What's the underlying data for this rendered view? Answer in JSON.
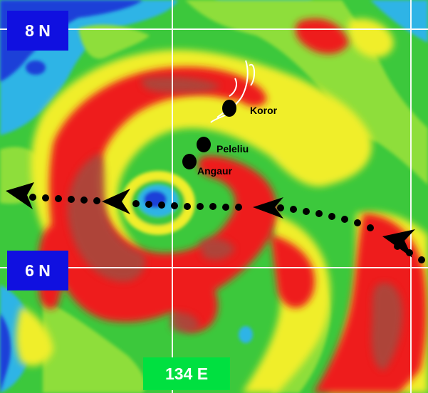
{
  "labels": {
    "lat_8n": "8 N",
    "lat_6n": "6 N",
    "lon_134e": "134 E"
  },
  "islands": [
    {
      "name": "Koror"
    },
    {
      "name": "Peleliu"
    },
    {
      "name": "Angaur"
    }
  ],
  "colors": {
    "ocean_green": "#3cc83c",
    "light_green": "#8ede3a",
    "yellow": "#f0ee2a",
    "red": "#ee1c1c",
    "dark_red": "#a84a3c",
    "cyan": "#2fb4e6",
    "blue": "#1f3fd8",
    "grid": "#ffffff",
    "label_blue": "#1010e0",
    "label_green": "#00e040"
  },
  "icons": [
    "island-dot-icon",
    "track-arrow-icon",
    "coastline-outline"
  ]
}
